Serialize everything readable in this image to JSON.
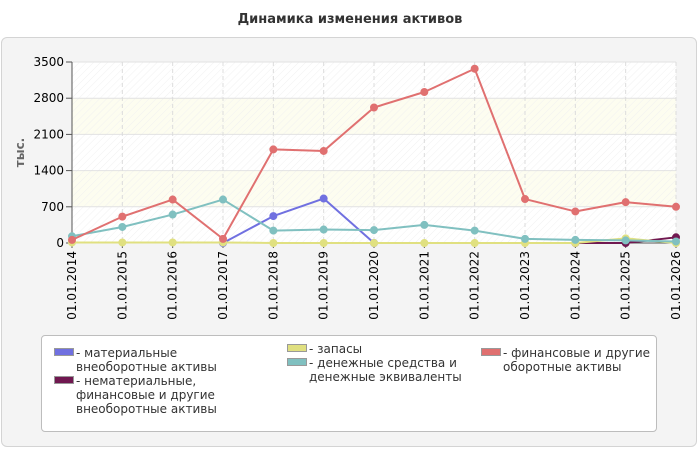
{
  "chart_data": {
    "type": "line",
    "title": "Динамика изменения активов",
    "ylabel": "тыс.",
    "xlabel": "",
    "categories": [
      "01.01.2014",
      "01.01.2015",
      "01.01.2016",
      "01.01.2017",
      "01.01.2018",
      "01.01.2019",
      "01.01.2020",
      "01.01.2021",
      "01.01.2022",
      "01.01.2023",
      "01.01.2024",
      "01.01.2025",
      "01.01.2026"
    ],
    "y_ticks": [
      "0",
      "700",
      "1400",
      "2100",
      "2800",
      "3500"
    ],
    "ylim": [
      0,
      3500
    ],
    "grid": true,
    "legend_position": "bottom",
    "series": [
      {
        "name": "- материальные внеоборотные активы",
        "color": "#7070e0",
        "values": [
          null,
          null,
          null,
          0,
          520,
          860,
          0,
          null,
          null,
          null,
          null,
          null,
          null
        ]
      },
      {
        "name": "- нематериальные, финансовые и другие внеоборотные активы",
        "color": "#701850",
        "values": [
          null,
          null,
          null,
          null,
          null,
          null,
          null,
          null,
          null,
          null,
          0,
          0,
          110
        ]
      },
      {
        "name": "- запасы",
        "color": "#e0e080",
        "values": [
          10,
          10,
          10,
          10,
          0,
          0,
          0,
          0,
          0,
          0,
          0,
          90,
          0
        ]
      },
      {
        "name": "- денежные средства и денежные эквиваленты",
        "color": "#80c0c0",
        "values": [
          130,
          310,
          550,
          840,
          240,
          260,
          250,
          350,
          240,
          80,
          60,
          50,
          30
        ]
      },
      {
        "name": "- финансовые и другие оборотные активы",
        "color": "#e07070",
        "values": [
          60,
          510,
          840,
          80,
          1810,
          1780,
          2620,
          2920,
          3370,
          850,
          610,
          790,
          700
        ]
      }
    ]
  }
}
